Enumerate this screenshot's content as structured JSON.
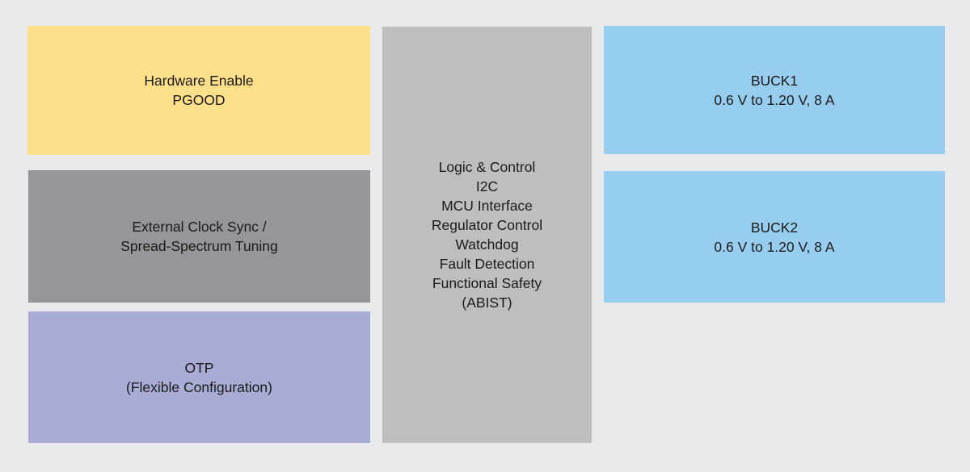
{
  "nodes": [
    {
      "lines": [
        "Hardware Enable",
        "PGOOD"
      ]
    },
    {
      "lines": [
        "External Clock Sync /",
        "Spread-Spectrum Tuning"
      ]
    },
    {
      "lines": [
        "OTP",
        "(Flexible Configuration)"
      ]
    },
    {
      "lines": [
        "Logic & Control",
        "I2C",
        "MCU Interface",
        "Regulator Control",
        "Watchdog",
        "Fault Detection",
        "Functional Safety",
        "(ABIST)"
      ]
    },
    {
      "lines": [
        "BUCK1",
        "0.6 V to 1.20 V, 8 A"
      ]
    },
    {
      "lines": [
        "BUCK2",
        "0.6 V to 1.20 V, 8 A"
      ]
    }
  ]
}
